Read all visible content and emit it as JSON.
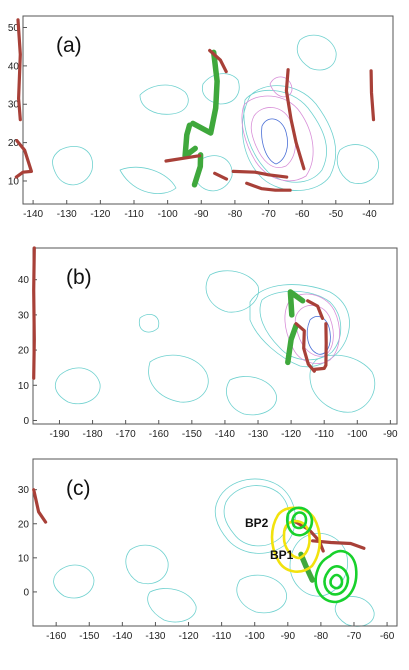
{
  "chart_data": [
    {
      "type": "line",
      "panel_label": "(a)",
      "xlim": [
        -143,
        -33
      ],
      "ylim": [
        4,
        53
      ],
      "x_ticks": [
        -140,
        -130,
        -120,
        -110,
        -100,
        -90,
        -80,
        -70,
        -60,
        -50,
        -40
      ],
      "y_ticks": [
        10,
        20,
        30,
        40,
        50
      ],
      "series": [
        {
          "kind": "green-front",
          "points": [
            [
              -86.3,
              43.5
            ],
            [
              -85.3,
              36
            ],
            [
              -85.7,
              29
            ],
            [
              -87.2,
              22.5
            ],
            [
              -92.5,
              25
            ]
          ]
        },
        {
          "kind": "green-front",
          "points": [
            [
              -93.5,
              24.5
            ],
            [
              -94.3,
              22
            ],
            [
              -94.8,
              16.5
            ],
            [
              -91.8,
              18.5
            ]
          ]
        },
        {
          "kind": "green-front",
          "points": [
            [
              -90.2,
              16.8
            ],
            [
              -90.3,
              13.8
            ],
            [
              -92,
              9
            ]
          ]
        },
        {
          "kind": "red-front",
          "points": [
            [
              -87.5,
              44
            ],
            [
              -84.3,
              41.5
            ],
            [
              -82.6,
              38.5
            ]
          ]
        },
        {
          "kind": "red-front",
          "points": [
            [
              -100.5,
              15.2
            ],
            [
              -90.5,
              16.6
            ]
          ]
        },
        {
          "kind": "red-front",
          "points": [
            [
              -86,
              12
            ],
            [
              -82.5,
              10.5
            ]
          ]
        },
        {
          "kind": "red-front",
          "points": [
            [
              -80.5,
              12.5
            ],
            [
              -74,
              12.3
            ],
            [
              -70,
              11.6
            ],
            [
              -64.6,
              11
            ]
          ]
        },
        {
          "kind": "red-front",
          "points": [
            [
              -76.5,
              9.4
            ],
            [
              -72,
              8
            ],
            [
              -68,
              7.6
            ],
            [
              -63.6,
              7.6
            ]
          ]
        },
        {
          "kind": "red-front",
          "points": [
            [
              -64.2,
              39
            ],
            [
              -64.7,
              33.5
            ],
            [
              -63.3,
              26
            ],
            [
              -61.8,
              20
            ],
            [
              -59.5,
              13.2
            ]
          ]
        },
        {
          "kind": "red-front",
          "points": [
            [
              -39.5,
              38.7
            ],
            [
              -39.4,
              33
            ],
            [
              -38.8,
              26
            ]
          ]
        },
        {
          "kind": "red-front",
          "points": [
            [
              -144.5,
              52
            ],
            [
              -143.8,
              43
            ],
            [
              -144.3,
              31.5
            ],
            [
              -143.8,
              26
            ]
          ]
        },
        {
          "kind": "red-front",
          "points": [
            [
              -144.8,
              20.5
            ],
            [
              -142.5,
              18
            ],
            [
              -140.5,
              12.5
            ],
            [
              -143,
              12.3
            ],
            [
              -145,
              11
            ]
          ]
        }
      ]
    },
    {
      "type": "line",
      "panel_label": "(b)",
      "xlim": [
        -198,
        -88
      ],
      "ylim": [
        -1,
        49
      ],
      "x_ticks": [
        -190,
        -180,
        -170,
        -160,
        -150,
        -140,
        -130,
        -120,
        -110,
        -100,
        -90
      ],
      "y_ticks": [
        0,
        10,
        20,
        30,
        40
      ],
      "series": [
        {
          "kind": "green-front",
          "points": [
            [
              -119.8,
              30
            ],
            [
              -120.2,
              36.5
            ],
            [
              -116.5,
              34
            ]
          ]
        },
        {
          "kind": "green-front",
          "points": [
            [
              -118.5,
              27
            ],
            [
              -120,
              23
            ],
            [
              -121,
              16.5
            ]
          ]
        },
        {
          "kind": "red-front",
          "points": [
            [
              -115,
              34
            ],
            [
              -112,
              32.5
            ],
            [
              -110.5,
              29
            ]
          ]
        },
        {
          "kind": "red-front",
          "points": [
            [
              -118.5,
              27.5
            ],
            [
              -116,
              25.5
            ],
            [
              -116.2,
              20.5
            ],
            [
              -114.8,
              16
            ],
            [
              -113,
              14
            ]
          ]
        },
        {
          "kind": "red-front",
          "points": [
            [
              -109.5,
              27.5
            ],
            [
              -109.4,
              22
            ],
            [
              -109.5,
              15.7
            ],
            [
              -110,
              14.8
            ],
            [
              -113,
              14.5
            ]
          ]
        },
        {
          "kind": "red-front",
          "points": [
            [
              -197.6,
              49
            ],
            [
              -197.8,
              37
            ],
            [
              -197.6,
              23
            ],
            [
              -197.8,
              12
            ]
          ]
        }
      ]
    },
    {
      "type": "line",
      "panel_label": "(c)",
      "xlim": [
        -167,
        -57
      ],
      "ylim": [
        -10,
        39
      ],
      "x_ticks": [
        -160,
        -150,
        -140,
        -130,
        -120,
        -110,
        -100,
        -90,
        -80,
        -70,
        -60
      ],
      "y_ticks": [
        0,
        10,
        20,
        30
      ],
      "annotations": [
        "BP2",
        "BP1"
      ],
      "series": [
        {
          "kind": "red-front",
          "points": [
            [
              -88.5,
              21
            ],
            [
              -83.5,
              18.2
            ],
            [
              -80.5,
              15
            ],
            [
              -79.3,
              12
            ]
          ]
        },
        {
          "kind": "red-front",
          "points": [
            [
              -82.5,
              15
            ],
            [
              -77,
              14.5
            ],
            [
              -71,
              14.2
            ],
            [
              -67,
              12.8
            ]
          ]
        },
        {
          "kind": "red-front",
          "points": [
            [
              -166.8,
              30
            ],
            [
              -165.3,
              23.5
            ],
            [
              -163.2,
              20.5
            ]
          ]
        },
        {
          "kind": "green-front",
          "points": [
            [
              -86,
              11
            ],
            [
              -84.5,
              7.5
            ],
            [
              -82.6,
              3.5
            ]
          ]
        }
      ]
    }
  ]
}
